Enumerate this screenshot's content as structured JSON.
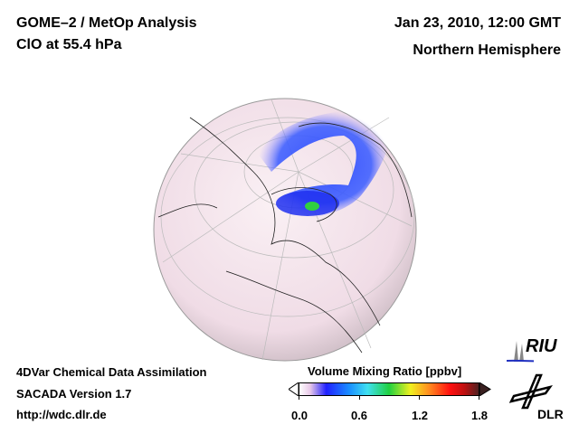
{
  "header": {
    "title": "GOME–2 / MetOp Analysis",
    "subtitle": "ClO at 55.4 hPa",
    "date": "Jan 23, 2010, 12:00 GMT",
    "region": "Northern Hemisphere"
  },
  "footer": {
    "line1": "4DVar Chemical Data Assimilation",
    "line2": "SACADA Version 1.7",
    "url": "http://wdc.dlr.de"
  },
  "colorbar": {
    "title": "Volume Mixing Ratio [ppbv]",
    "ticks": [
      "0.0",
      "0.6",
      "1.2",
      "1.8"
    ],
    "min": 0.0,
    "max": 1.8
  },
  "logos": {
    "riu": "RIU",
    "dlr": "DLR"
  }
}
